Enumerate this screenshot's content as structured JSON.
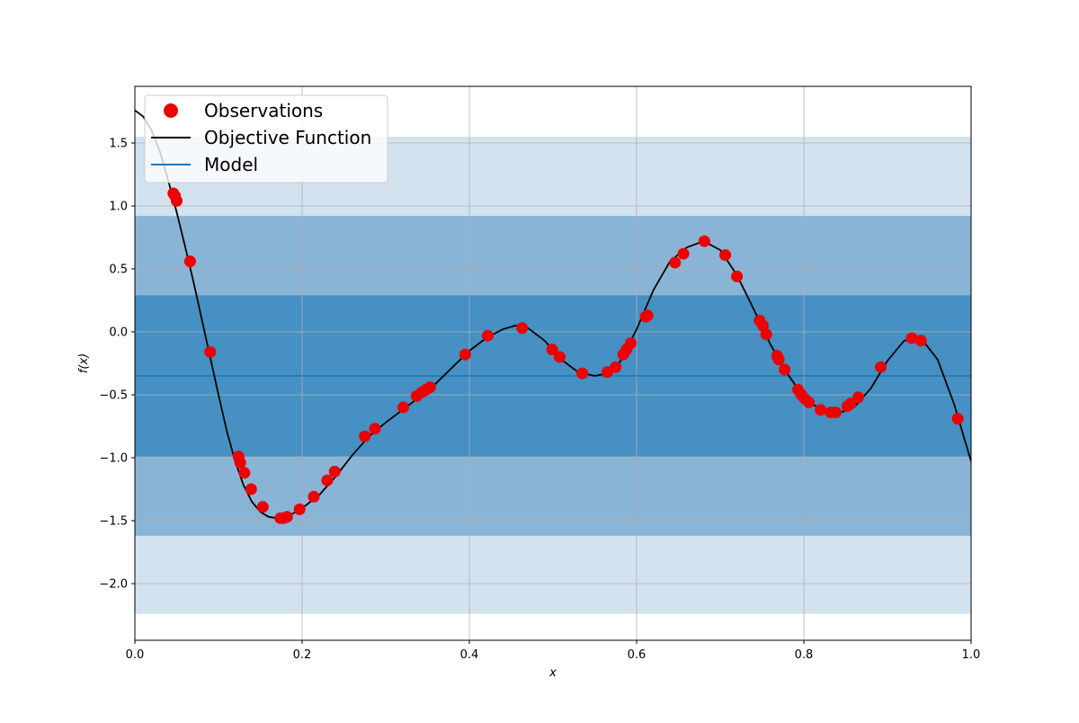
{
  "chart_data": {
    "type": "scatter",
    "xlabel": "x",
    "ylabel": "f(x)",
    "xlim": [
      0.0,
      1.0
    ],
    "ylim": [
      -2.45,
      1.95
    ],
    "grid": true,
    "legend_position": "top-left",
    "x_ticks": [
      {
        "value": 0.0,
        "label": "0.0"
      },
      {
        "value": 0.2,
        "label": "0.2"
      },
      {
        "value": 0.4,
        "label": "0.4"
      },
      {
        "value": 0.6,
        "label": "0.6"
      },
      {
        "value": 0.8,
        "label": "0.8"
      },
      {
        "value": 1.0,
        "label": "1.0"
      }
    ],
    "y_ticks": [
      {
        "value": -2.0,
        "label": "−2.0"
      },
      {
        "value": -1.5,
        "label": "−1.5"
      },
      {
        "value": -1.0,
        "label": "−1.0"
      },
      {
        "value": -0.5,
        "label": "−0.5"
      },
      {
        "value": 0.0,
        "label": "0.0"
      },
      {
        "value": 0.5,
        "label": "0.5"
      },
      {
        "value": 1.0,
        "label": "1.0"
      },
      {
        "value": 1.5,
        "label": "1.5"
      }
    ],
    "legend": [
      {
        "label": "Observations",
        "kind": "marker",
        "color": "#ee0000"
      },
      {
        "label": "Objective Function",
        "kind": "line",
        "color": "#000000"
      },
      {
        "label": "Model",
        "kind": "line",
        "color": "#1f77b4"
      }
    ],
    "model": {
      "mean": -0.35,
      "color": "#1f77b4",
      "bands": [
        {
          "lower": -2.24,
          "upper": 1.55,
          "color": "#d2e2ee"
        },
        {
          "lower": -1.62,
          "upper": 0.92,
          "color": "#8ab4d6"
        },
        {
          "lower": -0.99,
          "upper": 0.29,
          "color": "#4690c3"
        }
      ]
    },
    "objective_function": {
      "color": "#000000",
      "x": [
        0.0,
        0.01,
        0.02,
        0.03,
        0.04,
        0.05,
        0.06,
        0.07,
        0.08,
        0.09,
        0.1,
        0.11,
        0.12,
        0.13,
        0.14,
        0.15,
        0.16,
        0.17,
        0.18,
        0.19,
        0.2,
        0.22,
        0.24,
        0.26,
        0.28,
        0.3,
        0.32,
        0.34,
        0.36,
        0.38,
        0.4,
        0.42,
        0.44,
        0.455,
        0.47,
        0.49,
        0.51,
        0.53,
        0.55,
        0.565,
        0.58,
        0.6,
        0.62,
        0.64,
        0.66,
        0.68,
        0.7,
        0.72,
        0.74,
        0.76,
        0.78,
        0.8,
        0.82,
        0.84,
        0.86,
        0.88,
        0.9,
        0.92,
        0.94,
        0.96,
        0.98,
        1.0
      ],
      "y": [
        1.76,
        1.71,
        1.6,
        1.43,
        1.2,
        0.95,
        0.68,
        0.4,
        0.1,
        -0.2,
        -0.5,
        -0.79,
        -1.03,
        -1.22,
        -1.35,
        -1.43,
        -1.47,
        -1.48,
        -1.47,
        -1.44,
        -1.4,
        -1.3,
        -1.15,
        -0.98,
        -0.83,
        -0.72,
        -0.62,
        -0.52,
        -0.41,
        -0.28,
        -0.15,
        -0.05,
        0.02,
        0.05,
        0.03,
        -0.07,
        -0.22,
        -0.32,
        -0.35,
        -0.33,
        -0.24,
        0.02,
        0.33,
        0.56,
        0.67,
        0.72,
        0.65,
        0.45,
        0.18,
        -0.1,
        -0.33,
        -0.52,
        -0.62,
        -0.65,
        -0.6,
        -0.45,
        -0.23,
        -0.07,
        -0.05,
        -0.22,
        -0.58,
        -1.03
      ]
    },
    "observations": {
      "color": "#ee0000",
      "x": [
        0.046,
        0.048,
        0.05,
        0.066,
        0.09,
        0.124,
        0.126,
        0.131,
        0.139,
        0.153,
        0.174,
        0.178,
        0.182,
        0.197,
        0.214,
        0.23,
        0.239,
        0.275,
        0.287,
        0.321,
        0.337,
        0.343,
        0.348,
        0.353,
        0.395,
        0.422,
        0.463,
        0.499,
        0.508,
        0.535,
        0.565,
        0.575,
        0.584,
        0.588,
        0.593,
        0.611,
        0.613,
        0.646,
        0.656,
        0.681,
        0.706,
        0.72,
        0.747,
        0.751,
        0.755,
        0.768,
        0.77,
        0.777,
        0.793,
        0.797,
        0.801,
        0.806,
        0.82,
        0.832,
        0.838,
        0.852,
        0.856,
        0.865,
        0.892,
        0.929,
        0.94,
        0.984
      ],
      "y": [
        1.1,
        1.08,
        1.04,
        0.56,
        -0.16,
        -0.99,
        -1.04,
        -1.12,
        -1.25,
        -1.39,
        -1.48,
        -1.48,
        -1.47,
        -1.41,
        -1.31,
        -1.18,
        -1.11,
        -0.83,
        -0.77,
        -0.6,
        -0.51,
        -0.48,
        -0.46,
        -0.44,
        -0.18,
        -0.03,
        0.03,
        -0.14,
        -0.2,
        -0.33,
        -0.32,
        -0.28,
        -0.18,
        -0.14,
        -0.09,
        0.12,
        0.13,
        0.55,
        0.62,
        0.72,
        0.61,
        0.44,
        0.09,
        0.05,
        -0.02,
        -0.19,
        -0.22,
        -0.3,
        -0.46,
        -0.5,
        -0.53,
        -0.56,
        -0.62,
        -0.64,
        -0.64,
        -0.59,
        -0.57,
        -0.52,
        -0.28,
        -0.05,
        -0.07,
        -0.69
      ]
    }
  }
}
